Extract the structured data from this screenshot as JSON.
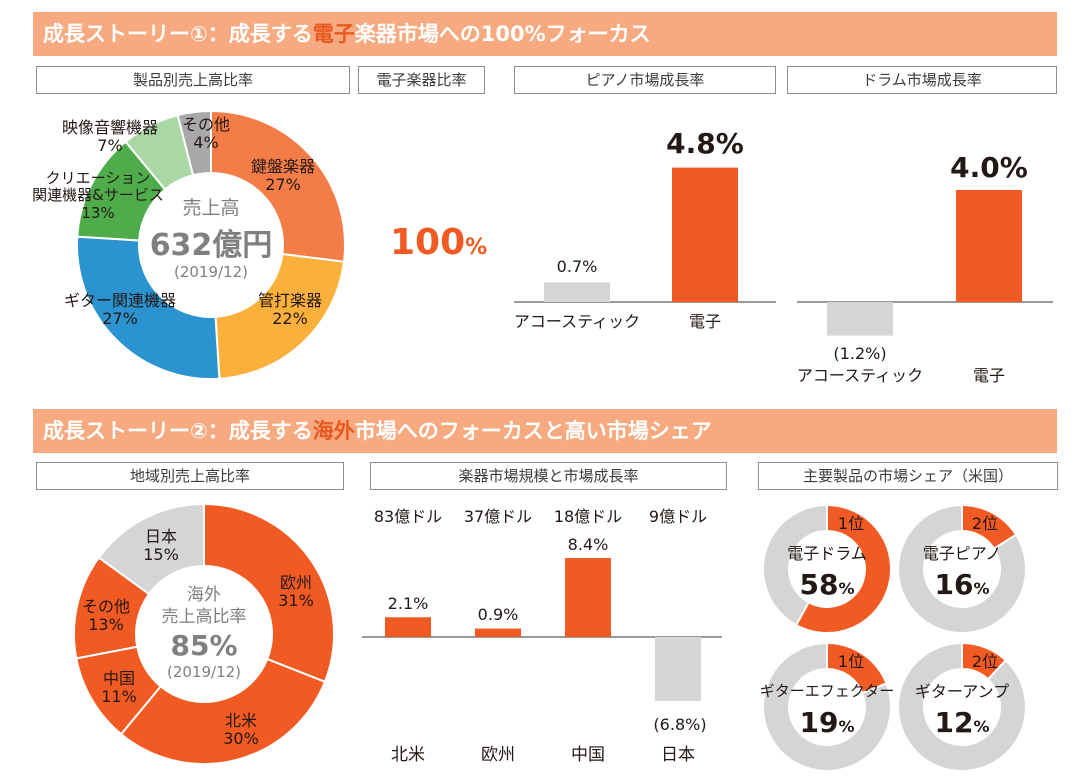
{
  "colors": {
    "orange": "#f15a22",
    "banner_bg": "#f7a980",
    "gray": "#d5d5d5",
    "dark_gray": "#a8a8a8",
    "yellow": "#fbb03b",
    "blue": "#2a93d0",
    "green": "#4fac4b",
    "light_green": "#a9d8a5",
    "slice_orange": "#f47d47",
    "text_gray": "#808080"
  },
  "story1": {
    "title_pre": "成長ストーリー①：成長する",
    "title_hl": "電子",
    "title_post": "楽器市場への100%フォーカス"
  },
  "story2": {
    "title_pre": "成長ストーリー②：成長する",
    "title_hl": "海外",
    "title_post": "市場へのフォーカスと高い市場シェア"
  },
  "chart_data": [
    {
      "type": "pie",
      "title": "製品別売上高比率",
      "center_label": "売上高",
      "center_value": "632億円",
      "center_date": "(2019/12)",
      "slices": [
        {
          "name": "鍵盤楽器",
          "value": 27,
          "label": "27%"
        },
        {
          "name": "管打楽器",
          "value": 22,
          "label": "22%"
        },
        {
          "name": "ギター関連機器",
          "value": 27,
          "label": "27%"
        },
        {
          "name": "クリエーション関連機器&サービス",
          "value": 13,
          "label": "13%"
        },
        {
          "name": "映像音響機器",
          "value": 7,
          "label": "7%"
        },
        {
          "name": "その他",
          "value": 4,
          "label": "4%"
        }
      ],
      "label_lines": {
        "creation_1": "クリエーション",
        "creation_2": "関連機器&サービス"
      }
    },
    {
      "type": "table",
      "title": "電子楽器比率",
      "value": 100,
      "num": "100",
      "unit": "%"
    },
    {
      "type": "bar",
      "title": "ピアノ市場成長率",
      "categories": [
        "アコースティック",
        "電子"
      ],
      "values": [
        0.7,
        4.8
      ],
      "value_labels": [
        "0.7%",
        "4.8%"
      ],
      "ylim": [
        -2,
        5.5
      ]
    },
    {
      "type": "bar",
      "title": "ドラム市場成長率",
      "categories": [
        "アコースティック",
        "電子"
      ],
      "values": [
        -1.2,
        4.0
      ],
      "value_labels": [
        "(1.2%)",
        "4.0%"
      ],
      "ylim": [
        -2,
        5.5
      ]
    },
    {
      "type": "pie",
      "title": "地域別売上高比率",
      "center_line1": "海外",
      "center_line2": "売上高比率",
      "center_value": "85%",
      "center_date": "(2019/12)",
      "slices": [
        {
          "name": "欧州",
          "value": 31,
          "label": "31%"
        },
        {
          "name": "北米",
          "value": 30,
          "label": "30%"
        },
        {
          "name": "中国",
          "value": 11,
          "label": "11%"
        },
        {
          "name": "その他",
          "value": 13,
          "label": "13%"
        },
        {
          "name": "日本",
          "value": 15,
          "label": "15%"
        }
      ]
    },
    {
      "type": "bar",
      "title": "楽器市場規模と市場成長率",
      "categories": [
        "北米",
        "欧州",
        "中国",
        "日本"
      ],
      "market_sizes": [
        "83億ドル",
        "37億ドル",
        "18億ドル",
        "9億ドル"
      ],
      "values": [
        2.1,
        0.9,
        8.4,
        -6.8
      ],
      "value_labels": [
        "2.1%",
        "0.9%",
        "8.4%",
        "(6.8%)"
      ],
      "ylim": [
        -7,
        9
      ]
    },
    {
      "type": "pie",
      "title": "主要製品の市場シェア（米国）",
      "items": [
        {
          "name": "電子ドラム",
          "rank": "1位",
          "share": 58,
          "num": "58",
          "unit": "%"
        },
        {
          "name": "電子ピアノ",
          "rank": "2位",
          "share": 16,
          "num": "16",
          "unit": "%"
        },
        {
          "name": "ギターエフェクター",
          "rank": "1位",
          "share": 19,
          "num": "19",
          "unit": "%"
        },
        {
          "name": "ギターアンプ",
          "rank": "2位",
          "share": 12,
          "num": "12",
          "unit": "%"
        }
      ]
    }
  ]
}
